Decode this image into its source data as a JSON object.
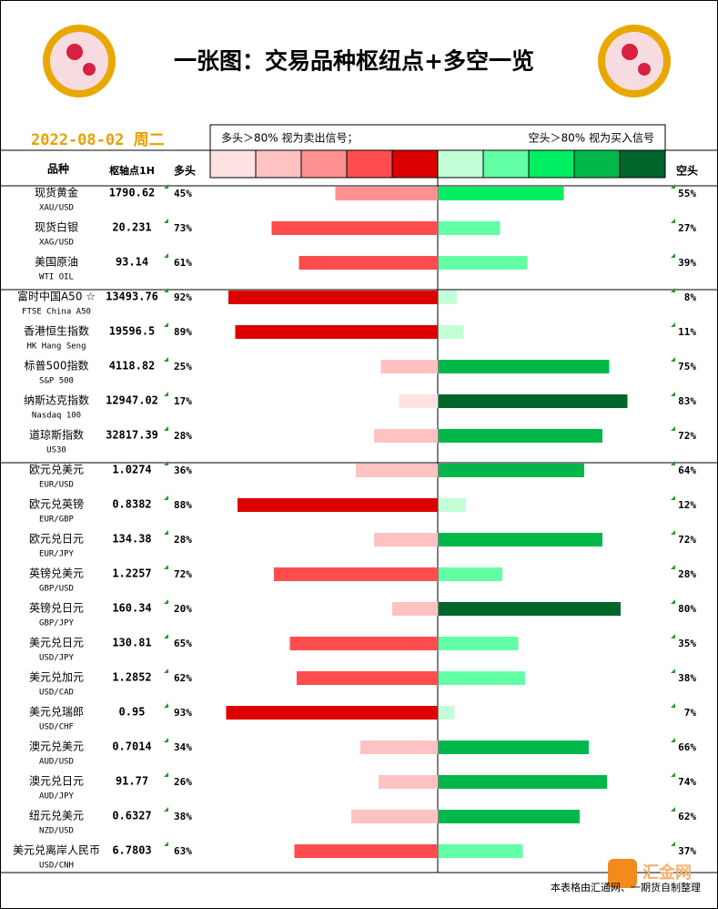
{
  "header": {
    "title": "一张图：交易品种枢纽点+多空一览",
    "date": "2022-08-02 周二",
    "legend_long": "多头＞80% 视为卖出信号；",
    "legend_short": "空头＞80% 视为买入信号"
  },
  "columns": {
    "name": "品种",
    "pivot": "枢轴点1H",
    "long": "多头",
    "short": "空头"
  },
  "long_colors": [
    "#ffe2e2",
    "#ffc2c2",
    "#ff9090",
    "#ff4d4d",
    "#dd0000"
  ],
  "short_colors": [
    "#c2ffd6",
    "#62ffa4",
    "#00ef62",
    "#00b84a",
    "#00662a"
  ],
  "table": {
    "rows": [
      {
        "name": "现货黄金",
        "code": "XAU/USD",
        "pivot": "1790.62",
        "long": 45,
        "long_label": "45%",
        "short": 55,
        "short_label": "55%"
      },
      {
        "name": "现货白银",
        "code": "XAG/USD",
        "pivot": "20.231",
        "long": 73,
        "long_label": "73%",
        "short": 27,
        "short_label": "27%"
      },
      {
        "name": "美国原油",
        "code": "WTI OIL",
        "pivot": "93.14",
        "long": 61,
        "long_label": "61%",
        "short": 39,
        "short_label": "39%"
      },
      {
        "name": "富时中国A50 ☆",
        "code": "FTSE China A50",
        "pivot": "13493.76",
        "long": 92,
        "long_label": "92%",
        "short": 8,
        "short_label": "8%"
      },
      {
        "name": "香港恒生指数",
        "code": "HK Hang Seng",
        "pivot": "19596.5",
        "long": 89,
        "long_label": "89%",
        "short": 11,
        "short_label": "11%"
      },
      {
        "name": "标普500指数",
        "code": "S&P 500",
        "pivot": "4118.82",
        "long": 25,
        "long_label": "25%",
        "short": 75,
        "short_label": "75%"
      },
      {
        "name": "纳斯达克指数",
        "code": "Nasdaq 100",
        "pivot": "12947.02",
        "long": 17,
        "long_label": "17%",
        "short": 83,
        "short_label": "83%"
      },
      {
        "name": "道琼斯指数",
        "code": "US30",
        "pivot": "32817.39",
        "long": 28,
        "long_label": "28%",
        "short": 72,
        "short_label": "72%"
      },
      {
        "name": "欧元兑美元",
        "code": "EUR/USD",
        "pivot": "1.0274",
        "long": 36,
        "long_label": "36%",
        "short": 64,
        "short_label": "64%"
      },
      {
        "name": "欧元兑英镑",
        "code": "EUR/GBP",
        "pivot": "0.8382",
        "long": 88,
        "long_label": "88%",
        "short": 12,
        "short_label": "12%"
      },
      {
        "name": "欧元兑日元",
        "code": "EUR/JPY",
        "pivot": "134.38",
        "long": 28,
        "long_label": "28%",
        "short": 72,
        "short_label": "72%"
      },
      {
        "name": "英镑兑美元",
        "code": "GBP/USD",
        "pivot": "1.2257",
        "long": 72,
        "long_label": "72%",
        "short": 28,
        "short_label": "28%"
      },
      {
        "name": "英镑兑日元",
        "code": "GBP/JPY",
        "pivot": "160.34",
        "long": 20,
        "long_label": "20%",
        "short": 80,
        "short_label": "80%"
      },
      {
        "name": "美元兑日元",
        "code": "USD/JPY",
        "pivot": "130.81",
        "long": 65,
        "long_label": "65%",
        "short": 35,
        "short_label": "35%"
      },
      {
        "name": "美元兑加元",
        "code": "USD/CAD",
        "pivot": "1.2852",
        "long": 62,
        "long_label": "62%",
        "short": 38,
        "short_label": "38%"
      },
      {
        "name": "美元兑瑞郎",
        "code": "USD/CHF",
        "pivot": "0.95",
        "long": 93,
        "long_label": "93%",
        "short": 7,
        "short_label": "7%"
      },
      {
        "name": "澳元兑美元",
        "code": "AUD/USD",
        "pivot": "0.7014",
        "long": 34,
        "long_label": "34%",
        "short": 66,
        "short_label": "66%"
      },
      {
        "name": "澳元兑日元",
        "code": "AUD/JPY",
        "pivot": "91.77",
        "long": 26,
        "long_label": "26%",
        "short": 74,
        "short_label": "74%"
      },
      {
        "name": "纽元兑美元",
        "code": "NZD/USD",
        "pivot": "0.6327",
        "long": 38,
        "long_label": "38%",
        "short": 62,
        "short_label": "62%"
      },
      {
        "name": "美元兑离岸人民币",
        "code": "USD/CNH",
        "pivot": "6.7803",
        "long": 63,
        "long_label": "63%",
        "short": 37,
        "short_label": "37%"
      }
    ]
  },
  "footer": {
    "note": "本表格由汇通网、一期货自制整理",
    "watermark": "汇金网"
  }
}
